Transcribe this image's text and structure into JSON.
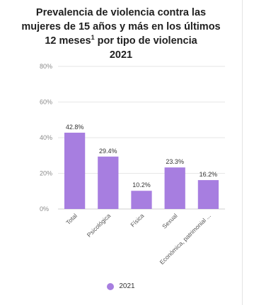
{
  "chart_data": {
    "type": "bar",
    "title_lines": [
      "Prevalencia de violencia contra las",
      "mujeres de 15 años y más en los últimos",
      "12 meses",
      "por tipo de violencia",
      "2021"
    ],
    "title_superscript": "1",
    "categories": [
      "Total",
      "Psicológica",
      "Física",
      "Sexual",
      "Económica, patrimonial ..."
    ],
    "values": [
      42.8,
      29.4,
      10.2,
      23.3,
      16.2
    ],
    "value_labels": [
      "42.8%",
      "29.4%",
      "10.2%",
      "23.3%",
      "16.2%"
    ],
    "series": [
      {
        "name": "2021",
        "values": [
          42.8,
          29.4,
          10.2,
          23.3,
          16.2
        ]
      }
    ],
    "yticks": [
      "0%",
      "20%",
      "40%",
      "60%",
      "80%"
    ],
    "ylim": [
      0,
      80
    ],
    "grid": true,
    "legend_position": "bottom",
    "bar_color": "#a77ee0",
    "xlabel": "",
    "ylabel": ""
  },
  "legend": {
    "label": "2021"
  }
}
